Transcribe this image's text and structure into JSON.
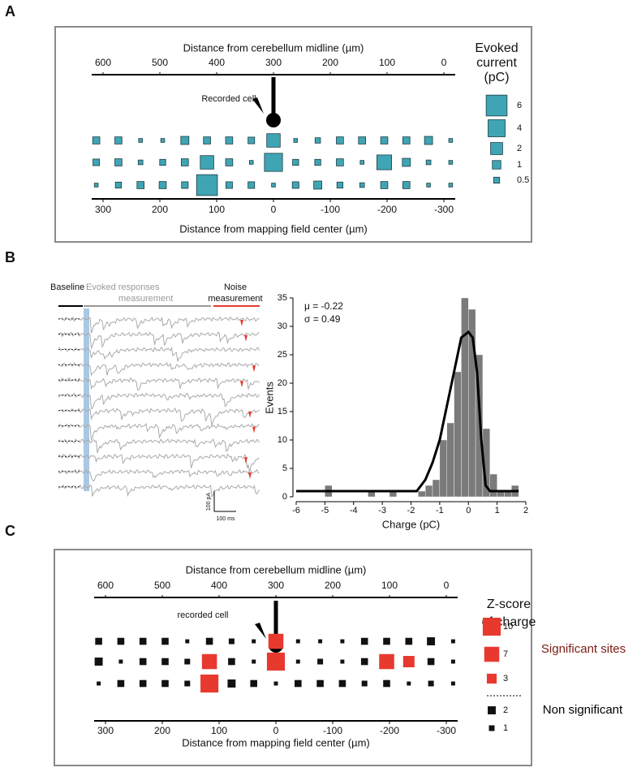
{
  "chart_data": [
    {
      "type": "bubble",
      "panel": "A",
      "x2label": "Distance from cerebellum midline (µm)",
      "x2lim": [
        620,
        -20
      ],
      "x2ticks": [
        600,
        500,
        400,
        300,
        200,
        100,
        0
      ],
      "xlabel": "Distance from mapping field center (µm)",
      "xlim": [
        320,
        -320
      ],
      "xticks": [
        300,
        200,
        100,
        0,
        -100,
        -200,
        -300
      ],
      "cell_label": "Recorded cell",
      "x": [
        312,
        273,
        234,
        195,
        156,
        117,
        78,
        39,
        0,
        -39,
        -78,
        -117,
        -156,
        -195,
        -234,
        -273,
        -312
      ],
      "color": "#3fa5b5",
      "edgecolor": "#1c3c42",
      "series": [
        {
          "values": [
            0.7,
            0.7,
            0.2,
            0.2,
            0.9,
            0.7,
            0.7,
            0.6,
            2.5,
            0.2,
            0.4,
            0.7,
            0.7,
            0.7,
            0.7,
            0.9,
            0.2
          ]
        },
        {
          "values": [
            0.6,
            0.7,
            0.3,
            0.5,
            0.7,
            2.5,
            0.7,
            0.2,
            4.5,
            0.5,
            0.5,
            0.7,
            0.2,
            3,
            0.9,
            0.3,
            0.2
          ]
        },
        {
          "values": [
            0.2,
            0.5,
            0.7,
            0.7,
            0.6,
            6,
            0.6,
            0.6,
            0.2,
            0.6,
            0.9,
            0.5,
            0.3,
            0.7,
            0.7,
            0.2,
            0.2
          ]
        }
      ],
      "legend": {
        "title": [
          "Evoked",
          "current",
          "(pC)"
        ],
        "groups": [
          {
            "color": "#3fa5b5",
            "sizes": [
              6,
              4,
              2,
              1,
              0.5
            ]
          }
        ]
      }
    },
    {
      "type": "histogram",
      "panel": "B",
      "trace_labels": {
        "baseline": "Baseline",
        "evoked": [
          "Evoked responses",
          "measurement"
        ],
        "noise": [
          "Noise",
          "measurement"
        ],
        "scale_y": "100 pA",
        "scale_x": "100 ms"
      },
      "bins": [
        -6,
        -5.75,
        -5.5,
        -5.25,
        -5,
        -4.75,
        -4.5,
        -4.25,
        -4,
        -3.75,
        -3.5,
        -3.25,
        -3,
        -2.75,
        -2.5,
        -2.25,
        -2,
        -1.75,
        -1.5,
        -1.25,
        -1,
        -0.75,
        -0.5,
        -0.25,
        0,
        0.25,
        0.5,
        0.75,
        1,
        1.25,
        1.5,
        1.75,
        2
      ],
      "values": [
        0,
        0,
        0,
        0,
        2,
        0,
        0,
        0,
        0,
        0,
        1,
        0,
        0,
        1,
        0,
        0,
        0,
        1,
        2,
        3,
        10,
        13,
        22,
        35,
        33,
        25,
        12,
        4,
        1,
        1,
        2,
        0
      ],
      "color": "#7a7a7a",
      "fit": {
        "x": [
          -6,
          -2,
          -1.8,
          -1.5,
          -1.25,
          -1,
          -0.75,
          -0.5,
          -0.25,
          0,
          0.15,
          0.3,
          0.45,
          0.6,
          0.75,
          1.75
        ],
        "values": [
          1,
          1,
          1,
          3,
          6,
          10,
          16,
          22,
          28,
          29,
          28,
          22,
          10,
          2,
          1,
          1
        ],
        "color": "#000000"
      },
      "xlim": [
        -6,
        2
      ],
      "ylim": [
        0,
        35
      ],
      "xticks": [
        -6,
        -5,
        -4,
        -3,
        -2,
        -1,
        0,
        1,
        2
      ],
      "yticks": [
        0,
        5,
        10,
        15,
        20,
        25,
        30,
        35
      ],
      "xlabel": "Charge (pC)",
      "ylabel": "Events",
      "annotations": [
        "μ = -0.22",
        "σ = 0.49"
      ]
    },
    {
      "type": "bubble",
      "panel": "C",
      "x2label": "Distance from cerebellum midline (µm)",
      "x2lim": [
        620,
        -20
      ],
      "x2ticks": [
        600,
        500,
        400,
        300,
        200,
        100,
        0
      ],
      "xlabel": "Distance from mapping field center (µm)",
      "xlim": [
        320,
        -320
      ],
      "xticks": [
        300,
        200,
        100,
        0,
        -100,
        -200,
        -300
      ],
      "cell_label": "recorded cell",
      "x": [
        312,
        273,
        234,
        195,
        156,
        117,
        78,
        39,
        0,
        -39,
        -78,
        -117,
        -156,
        -195,
        -234,
        -273,
        -312
      ],
      "series": [
        {
          "values": [
            1.5,
            1.5,
            1.5,
            1.5,
            0.5,
            1.5,
            1,
            0.5,
            7,
            0.5,
            0.5,
            0.5,
            1.5,
            1.5,
            1.5,
            2,
            0.5
          ]
        },
        {
          "values": [
            2,
            0.5,
            1.5,
            1.5,
            1,
            7,
            1.5,
            0.5,
            10,
            0.5,
            1,
            0.5,
            1.5,
            7,
            4,
            1.5,
            0.5
          ]
        },
        {
          "values": [
            0.5,
            1.5,
            1.5,
            1.5,
            1,
            10,
            2,
            1.5,
            0.5,
            1.5,
            1.5,
            1.5,
            1,
            1.5,
            0.5,
            1,
            0.5
          ]
        }
      ],
      "legend": {
        "title": [
          "Z-score",
          "of charge"
        ],
        "groups": [
          {
            "label": "Significant sites",
            "color": "#e8392f",
            "label_color": "#7a1c14",
            "sizes": [
              10,
              7,
              3
            ]
          },
          {
            "label": "Non significant",
            "color": "#111111",
            "label_color": "#000000",
            "sizes": [
              2,
              1
            ]
          }
        ]
      }
    }
  ]
}
